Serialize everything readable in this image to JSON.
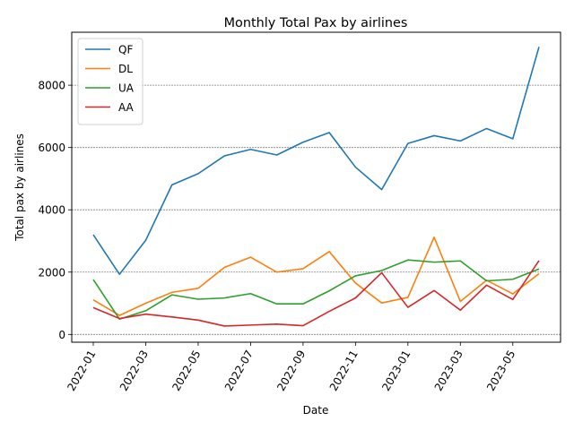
{
  "chart_data": {
    "type": "line",
    "title": "Monthly Total Pax by airlines",
    "xlabel": "Date",
    "ylabel": "Total pax by airlines",
    "x": [
      "2022-01",
      "2022-02",
      "2022-03",
      "2022-04",
      "2022-05",
      "2022-06",
      "2022-07",
      "2022-08",
      "2022-09",
      "2022-10",
      "2022-11",
      "2022-12",
      "2023-01",
      "2023-02",
      "2023-03",
      "2023-04",
      "2023-05",
      "2023-06"
    ],
    "x_ticks": [
      "2022-01",
      "2022-03",
      "2022-05",
      "2022-07",
      "2022-09",
      "2022-11",
      "2023-01",
      "2023-03",
      "2023-05"
    ],
    "y_ticks": [
      0,
      2000,
      4000,
      6000,
      8000
    ],
    "ylim": [
      -250,
      9700
    ],
    "grid": "y-axis dashed",
    "legend_position": "top-left",
    "series": [
      {
        "name": "QF",
        "color": "#1f77b4",
        "values": [
          3200,
          1930,
          3020,
          4800,
          5160,
          5730,
          5940,
          5760,
          6170,
          6480,
          5370,
          4650,
          6130,
          6380,
          6210,
          6610,
          6280,
          9230
        ]
      },
      {
        "name": "DL",
        "color": "#ff7f0e",
        "values": [
          1110,
          610,
          1000,
          1350,
          1480,
          2150,
          2480,
          2000,
          2110,
          2660,
          1650,
          1010,
          1190,
          3120,
          1060,
          1740,
          1300,
          1950
        ]
      },
      {
        "name": "UA",
        "color": "#2ca02c",
        "values": [
          1760,
          490,
          760,
          1270,
          1130,
          1170,
          1310,
          980,
          980,
          1400,
          1880,
          2050,
          2390,
          2320,
          2360,
          1720,
          1770,
          2100
        ]
      },
      {
        "name": "AA",
        "color": "#d62728",
        "values": [
          860,
          510,
          650,
          560,
          460,
          270,
          300,
          330,
          280,
          740,
          1170,
          1980,
          870,
          1410,
          780,
          1580,
          1120,
          2370
        ]
      }
    ]
  }
}
